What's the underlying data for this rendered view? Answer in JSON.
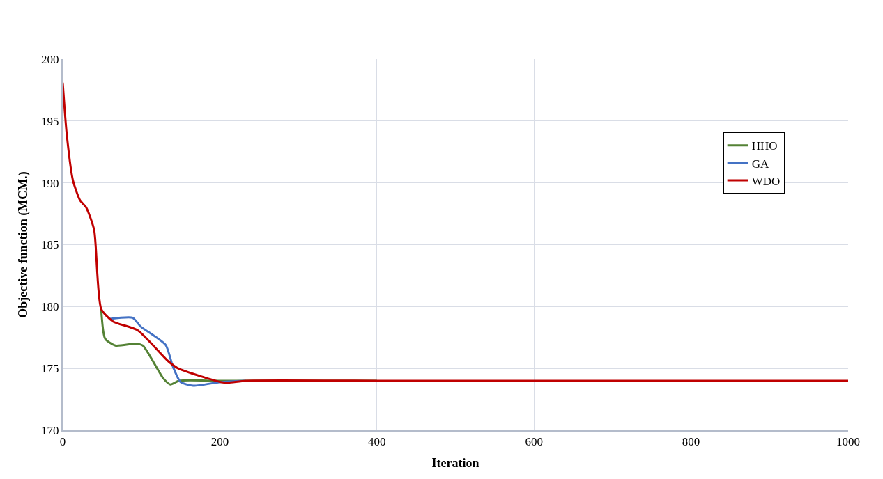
{
  "chart_data": {
    "type": "line",
    "xlabel": "Iteration",
    "ylabel": "Objective function (MCM.)",
    "xlim": [
      0,
      1000
    ],
    "xticks": [
      0,
      200,
      400,
      600,
      800,
      1000
    ],
    "ylim": [
      170,
      200
    ],
    "yticks": [
      170,
      175,
      180,
      185,
      190,
      195,
      200
    ],
    "grid": true,
    "legend": "right",
    "line_style": "solid",
    "marker": "none",
    "series": [
      {
        "name": "HHO",
        "color": "#548235",
        "x": [
          49,
          54,
          67,
          93,
          102,
          128,
          137,
          148,
          200,
          400
        ],
        "values": [
          179.8,
          177.4,
          176.85,
          177.0,
          176.85,
          174.2,
          173.7,
          174.0,
          174.0,
          174.0
        ]
      },
      {
        "name": "GA",
        "color": "#4472c4",
        "x": [
          60,
          89,
          99,
          131,
          140,
          150,
          166,
          201,
          233
        ],
        "values": [
          179.0,
          179.1,
          178.4,
          176.9,
          175.2,
          173.9,
          173.6,
          173.9,
          174.0
        ]
      },
      {
        "name": "WDO",
        "color": "#c00000",
        "x": [
          0,
          5,
          13,
          22,
          30,
          40,
          49,
          64,
          95,
          134,
          147,
          201,
          211,
          233,
          400,
          600,
          800,
          1000
        ],
        "values": [
          198.1,
          194,
          190.2,
          188.6,
          188.0,
          186.2,
          179.8,
          178.8,
          178.1,
          175.6,
          175.0,
          173.9,
          173.85,
          174.0,
          174.0,
          174.0,
          174.0,
          174.0
        ]
      }
    ]
  }
}
